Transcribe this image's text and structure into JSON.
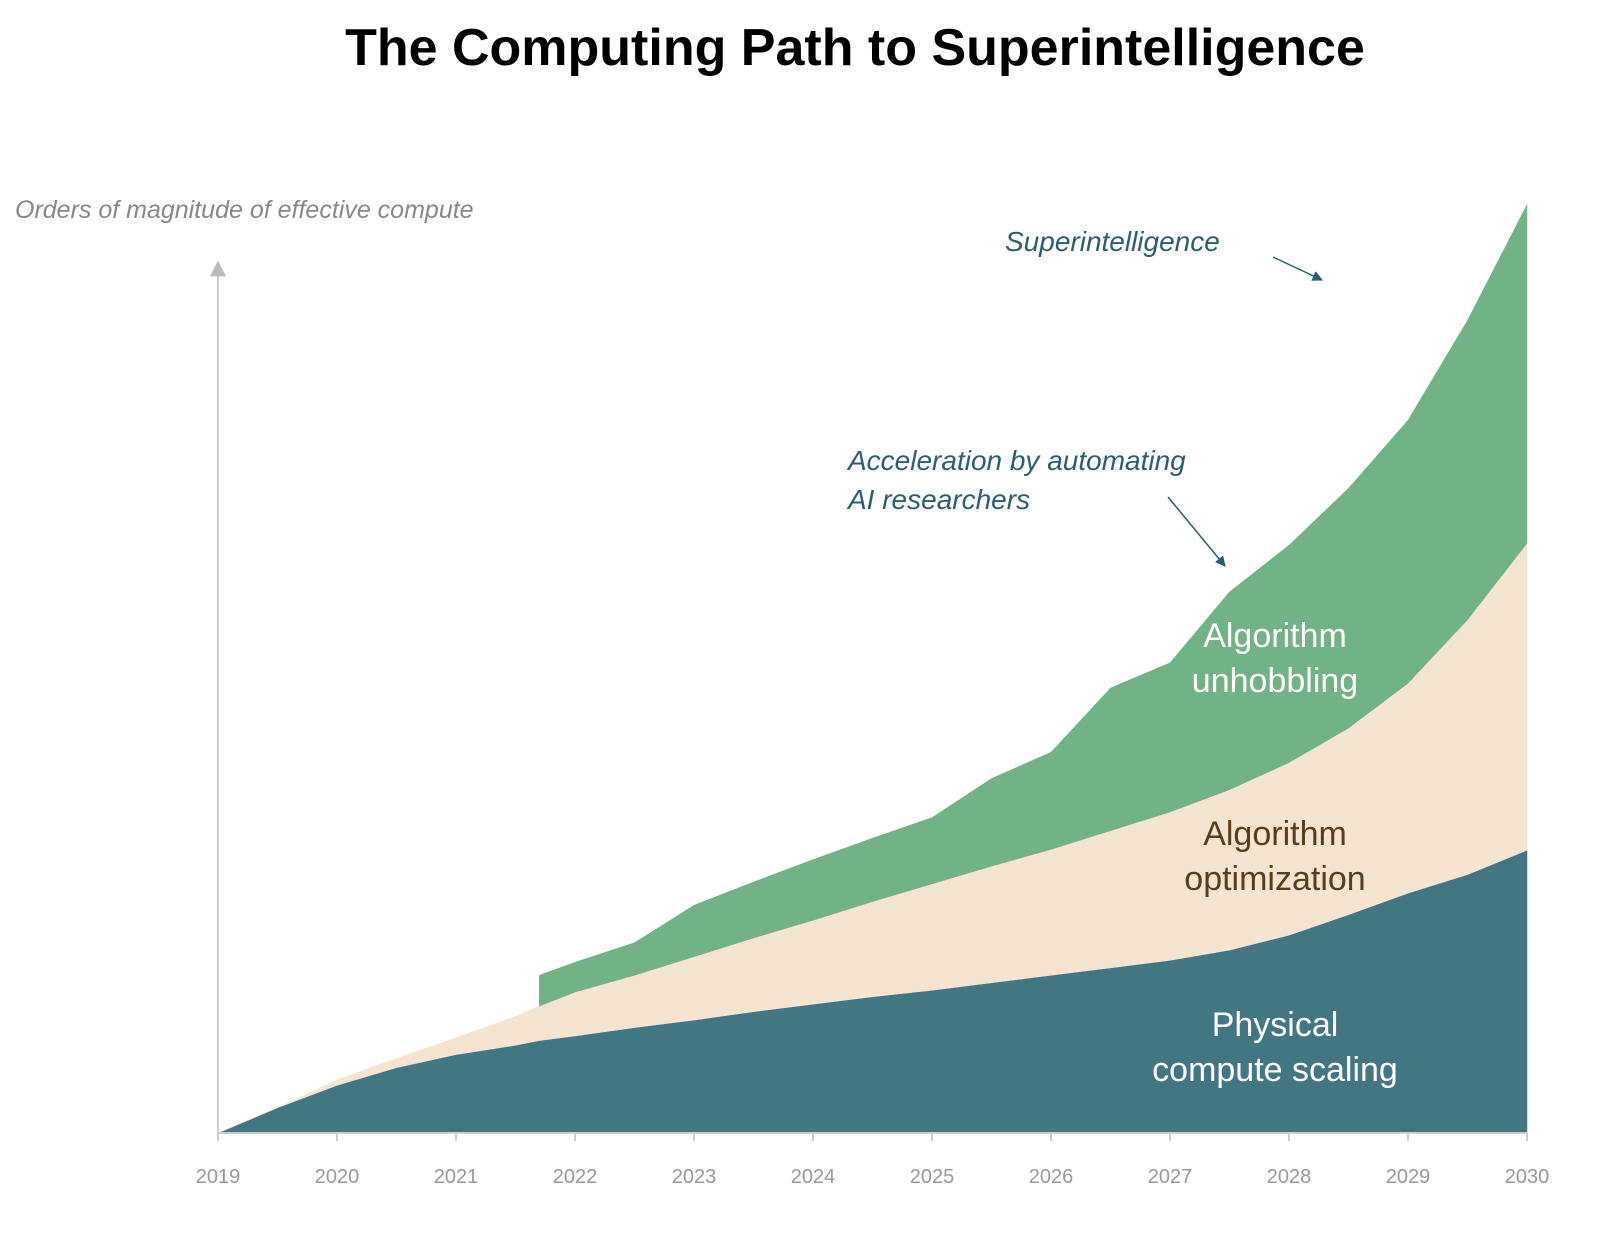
{
  "chart_data": {
    "type": "stacked_area",
    "title": "The Computing Path to Superintelligence",
    "y_label": "Orders of magnitude of effective compute",
    "annotations": [
      "Superintelligence",
      "Acceleration by automating\nAI researchers"
    ],
    "x": [
      2019,
      2019.5,
      2020,
      2020.5,
      2021,
      2021.5,
      2021.7,
      2022,
      2022.5,
      2023,
      2023.5,
      2024,
      2024.5,
      2025,
      2025.5,
      2026,
      2026.5,
      2027,
      2027.5,
      2028,
      2028.5,
      2029,
      2029.5,
      2030
    ],
    "xlim": [
      2019,
      2030
    ],
    "xticks": [
      2019,
      2020,
      2021,
      2022,
      2023,
      2024,
      2025,
      2026,
      2027,
      2028,
      2029,
      2030
    ],
    "ylim": [
      0,
      100
    ],
    "series": [
      {
        "name": "Physical\ncompute scaling",
        "color": "#437683",
        "label_color": "#ffffff",
        "values": [
          0,
          2.7,
          5.1,
          7.0,
          8.4,
          9.4,
          9.9,
          10.4,
          11.3,
          12.1,
          13.0,
          13.8,
          14.6,
          15.3,
          16.1,
          16.9,
          17.7,
          18.5,
          19.6,
          21.2,
          23.4,
          25.7,
          27.7,
          30.3
        ]
      },
      {
        "name": "Algorithm\noptimization",
        "color": "#f5e4d0",
        "label_color": "#5a3d1a",
        "values": [
          0,
          0,
          0.6,
          1.0,
          1.8,
          3.1,
          3.7,
          4.7,
          5.6,
          6.8,
          7.9,
          9.0,
          10.2,
          11.4,
          12.5,
          13.5,
          14.7,
          15.9,
          17.2,
          18.5,
          20.0,
          22.5,
          27.3,
          32.9
        ]
      },
      {
        "name": "Algorithm\nunhobbling",
        "color": "#72b287",
        "label_color": "#ffffff",
        "values": [
          null,
          null,
          null,
          null,
          null,
          null,
          3.3,
          3.2,
          3.5,
          5.5,
          6.0,
          6.5,
          6.8,
          7.1,
          9.4,
          10.4,
          15.3,
          16.0,
          21.2,
          23.3,
          25.7,
          28.2,
          32.1,
          36.3
        ]
      }
    ]
  }
}
